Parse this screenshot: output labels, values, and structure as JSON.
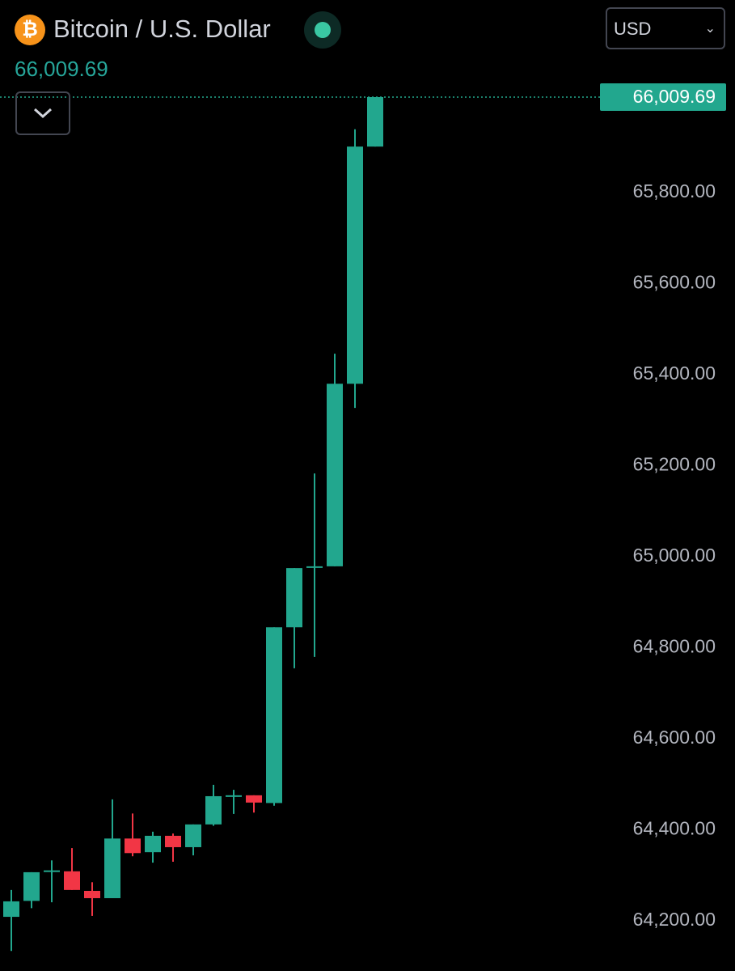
{
  "chart_data": {
    "type": "candlestick",
    "title": "Bitcoin / U.S. Dollar",
    "currency": "USD",
    "last_price": {
      "value": 66009.69,
      "label": "66,009.69"
    },
    "up_color": "#22a78e",
    "down_color": "#f23645",
    "open": [
      64209,
      64244,
      64309,
      64309,
      64266,
      64250,
      64381,
      64351,
      64387,
      64362,
      64412,
      64474,
      64476,
      64459,
      64845,
      64977,
      64979,
      65380,
      65901
    ],
    "high": [
      64268,
      64307,
      64333,
      64360,
      64285,
      64467,
      64436,
      64396,
      64392,
      64412,
      64499,
      64488,
      64476,
      64845,
      64975,
      65183,
      65446,
      65939,
      66009.69
    ],
    "low": [
      64134,
      64228,
      64241,
      64268,
      64211,
      64250,
      64342,
      64328,
      64330,
      64344,
      64409,
      64435,
      64438,
      64453,
      64755,
      64780,
      64979,
      65327,
      65901
    ],
    "close": [
      64243,
      64307,
      64311,
      64268,
      64250,
      64381,
      64349,
      64387,
      64362,
      64412,
      64474,
      64476,
      64460,
      64845,
      64975,
      64979,
      65380,
      65901,
      66009.69
    ],
    "ylim": [
      64090,
      66223
    ],
    "yticks": [
      {
        "value": 64200,
        "label": "64,200.00"
      },
      {
        "value": 64400,
        "label": "64,400.00"
      },
      {
        "value": 64600,
        "label": "64,600.00"
      },
      {
        "value": 64800,
        "label": "64,800.00"
      },
      {
        "value": 65000,
        "label": "65,000.00"
      },
      {
        "value": 65200,
        "label": "65,200.00"
      },
      {
        "value": 65400,
        "label": "65,400.00"
      },
      {
        "value": 65600,
        "label": "65,600.00"
      },
      {
        "value": 65800,
        "label": "65,800.00"
      }
    ]
  }
}
